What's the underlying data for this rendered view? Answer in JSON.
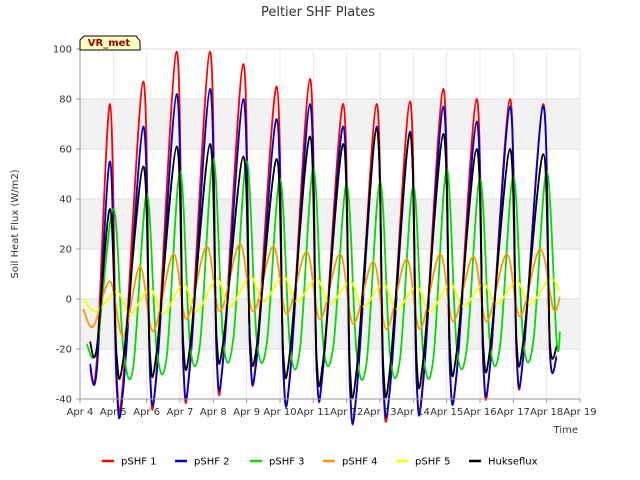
{
  "chart_data": {
    "type": "line",
    "title": "Peltier SHF Plates",
    "xlabel": "Time",
    "ylabel": "Soil Heat Flux (W/m2)",
    "xlim": [
      4,
      19
    ],
    "ylim": [
      -40,
      100
    ],
    "yticks": [
      -40,
      -20,
      0,
      20,
      40,
      60,
      80,
      100
    ],
    "xticks": [
      {
        "v": 4,
        "label": "Apr 4"
      },
      {
        "v": 5,
        "label": "Apr 5"
      },
      {
        "v": 6,
        "label": "Apr 6"
      },
      {
        "v": 7,
        "label": "Apr 7"
      },
      {
        "v": 8,
        "label": "Apr 8"
      },
      {
        "v": 9,
        "label": "Apr 9"
      },
      {
        "v": 10,
        "label": "Apr 10"
      },
      {
        "v": 11,
        "label": "Apr 11"
      },
      {
        "v": 12,
        "label": "Apr 12"
      },
      {
        "v": 13,
        "label": "Apr 13"
      },
      {
        "v": 14,
        "label": "Apr 14"
      },
      {
        "v": 15,
        "label": "Apr 15"
      },
      {
        "v": 16,
        "label": "Apr 16"
      },
      {
        "v": 17,
        "label": "Apr 17"
      },
      {
        "v": 18,
        "label": "Apr 18"
      },
      {
        "v": 19,
        "label": "Apr 19"
      }
    ],
    "grid": true,
    "background_bands": "alternating light gray horizontal bands",
    "legend_position": "bottom",
    "annotation": "VR_met",
    "x_unit": "day of April",
    "series": [
      {
        "name": "pSHF 1",
        "color": "#ff0000",
        "x": [
          4.3,
          4.5,
          4.9,
          5.1,
          5.3,
          5.9,
          6.1,
          6.3,
          6.9,
          7.1,
          7.3,
          7.9,
          8.1,
          8.3,
          8.9,
          9.1,
          9.3,
          9.9,
          10.1,
          10.3,
          10.9,
          11.1,
          11.3,
          11.9,
          12.1,
          12.3,
          12.9,
          13.1,
          13.3,
          13.9,
          14.1,
          14.3,
          14.9,
          15.1,
          15.3,
          15.9,
          16.1,
          16.3,
          16.9,
          17.1,
          17.3,
          17.9,
          18.1,
          18.3
        ],
        "y": [
          -28,
          -25,
          78,
          -30,
          -32,
          87,
          -30,
          -28,
          99,
          -27,
          -25,
          99,
          -24,
          -23,
          94,
          -20,
          -22,
          85,
          -27,
          -30,
          88,
          -28,
          -27,
          78,
          -35,
          -37,
          78,
          -35,
          -35,
          79,
          -33,
          -31,
          84,
          -28,
          -29,
          80,
          -27,
          -27,
          80,
          -24,
          -23,
          78,
          -22,
          -23
        ]
      },
      {
        "name": "pSHF 2",
        "color": "#0000cc",
        "x": [
          4.3,
          4.5,
          4.9,
          5.1,
          5.3,
          5.9,
          6.1,
          6.3,
          6.9,
          7.1,
          7.3,
          7.9,
          8.1,
          8.3,
          8.9,
          9.1,
          9.3,
          9.9,
          10.1,
          10.3,
          10.9,
          11.1,
          11.3,
          11.9,
          12.1,
          12.3,
          12.9,
          13.1,
          13.3,
          13.9,
          14.1,
          14.3,
          14.9,
          15.1,
          15.3,
          15.9,
          16.1,
          16.3,
          16.9,
          17.1,
          17.3,
          17.9,
          18.1,
          18.3
        ],
        "y": [
          -26,
          -29,
          55,
          -35,
          -36,
          69,
          -29,
          -30,
          82,
          -26,
          -27,
          84,
          -23,
          -24,
          80,
          -20,
          -24,
          72,
          -29,
          -31,
          78,
          -29,
          -27,
          69,
          -36,
          -37,
          69,
          -33,
          -36,
          67,
          -34,
          -33,
          77,
          -29,
          -30,
          71,
          -26,
          -27,
          77,
          -23,
          -23,
          77,
          -22,
          -23
        ]
      },
      {
        "name": "pSHF 3",
        "color": "#00dd00",
        "x": [
          4.2,
          4.5,
          5.0,
          5.3,
          5.6,
          6.0,
          6.3,
          6.6,
          7.0,
          7.3,
          7.6,
          8.0,
          8.3,
          8.6,
          9.0,
          9.3,
          9.6,
          10.0,
          10.3,
          10.6,
          11.0,
          11.3,
          11.6,
          12.0,
          12.3,
          12.6,
          13.0,
          13.3,
          13.6,
          14.0,
          14.3,
          14.6,
          15.0,
          15.3,
          15.6,
          16.0,
          16.3,
          16.6,
          17.0,
          17.3,
          17.6,
          18.0,
          18.3,
          18.4
        ],
        "y": [
          -18,
          -20,
          36,
          -20,
          -27,
          42,
          -20,
          -23,
          51,
          -18,
          -18,
          56,
          -17,
          -16,
          55,
          -16,
          -18,
          48,
          -19,
          -20,
          52,
          -18,
          -19,
          46,
          -22,
          -25,
          47,
          -22,
          -24,
          45,
          -22,
          -24,
          52,
          -19,
          -20,
          48,
          -18,
          -19,
          49,
          -17,
          -17,
          51,
          -17,
          -13
        ]
      },
      {
        "name": "pSHF 4",
        "color": "#ff9900",
        "x": [
          4.1,
          4.4,
          4.9,
          5.3,
          5.8,
          6.2,
          6.8,
          7.2,
          7.8,
          8.2,
          8.8,
          9.2,
          9.8,
          10.2,
          10.8,
          11.2,
          11.8,
          12.2,
          12.8,
          13.2,
          13.8,
          14.2,
          14.8,
          15.2,
          15.8,
          16.2,
          16.8,
          17.2,
          17.8,
          18.2,
          18.4
        ],
        "y": [
          -4,
          -11,
          7,
          -15,
          13,
          -13,
          18,
          -8,
          21,
          -5,
          22,
          -5,
          21,
          -6,
          19,
          -8,
          18,
          -10,
          15,
          -12,
          16,
          -12,
          18,
          -9,
          17,
          -9,
          18,
          -7,
          20,
          -4,
          1
        ]
      },
      {
        "name": "pSHF 5",
        "color": "#ffff00",
        "x": [
          4.1,
          4.5,
          5.1,
          5.5,
          6.1,
          6.5,
          7.1,
          7.5,
          8.1,
          8.5,
          9.1,
          9.5,
          10.1,
          10.5,
          11.1,
          11.5,
          12.1,
          12.5,
          13.1,
          13.5,
          14.1,
          14.5,
          15.1,
          15.5,
          16.1,
          16.5,
          17.1,
          17.5,
          18.1,
          18.4
        ],
        "y": [
          0,
          -5,
          3,
          -6,
          4,
          -6,
          6,
          -5,
          8,
          -3,
          9,
          -1,
          9,
          -1,
          8,
          -2,
          7,
          -3,
          6,
          -4,
          5,
          -5,
          6,
          -3,
          6,
          -2,
          7,
          -2,
          8,
          3
        ]
      },
      {
        "name": "Hukseflux",
        "color": "#000000",
        "x": [
          4.3,
          4.5,
          4.9,
          5.1,
          5.3,
          5.9,
          6.1,
          6.3,
          6.9,
          7.1,
          7.3,
          7.9,
          8.1,
          8.3,
          8.9,
          9.1,
          9.3,
          9.9,
          10.1,
          10.3,
          10.9,
          11.1,
          11.3,
          11.9,
          12.1,
          12.3,
          12.9,
          13.1,
          13.3,
          13.9,
          14.1,
          14.3,
          14.9,
          15.1,
          15.3,
          15.9,
          16.1,
          16.3,
          16.9,
          17.1,
          17.3,
          17.9,
          18.1,
          18.3
        ],
        "y": [
          -17,
          -20,
          36,
          -23,
          -24,
          53,
          -22,
          -21,
          61,
          -18,
          -19,
          62,
          -16,
          -17,
          57,
          -16,
          -19,
          56,
          -22,
          -21,
          65,
          -24,
          -24,
          62,
          -28,
          -28,
          68,
          -27,
          -28,
          66,
          -25,
          -24,
          66,
          -20,
          -21,
          60,
          -19,
          -20,
          60,
          -18,
          -17,
          58,
          -18,
          -19
        ]
      }
    ]
  }
}
